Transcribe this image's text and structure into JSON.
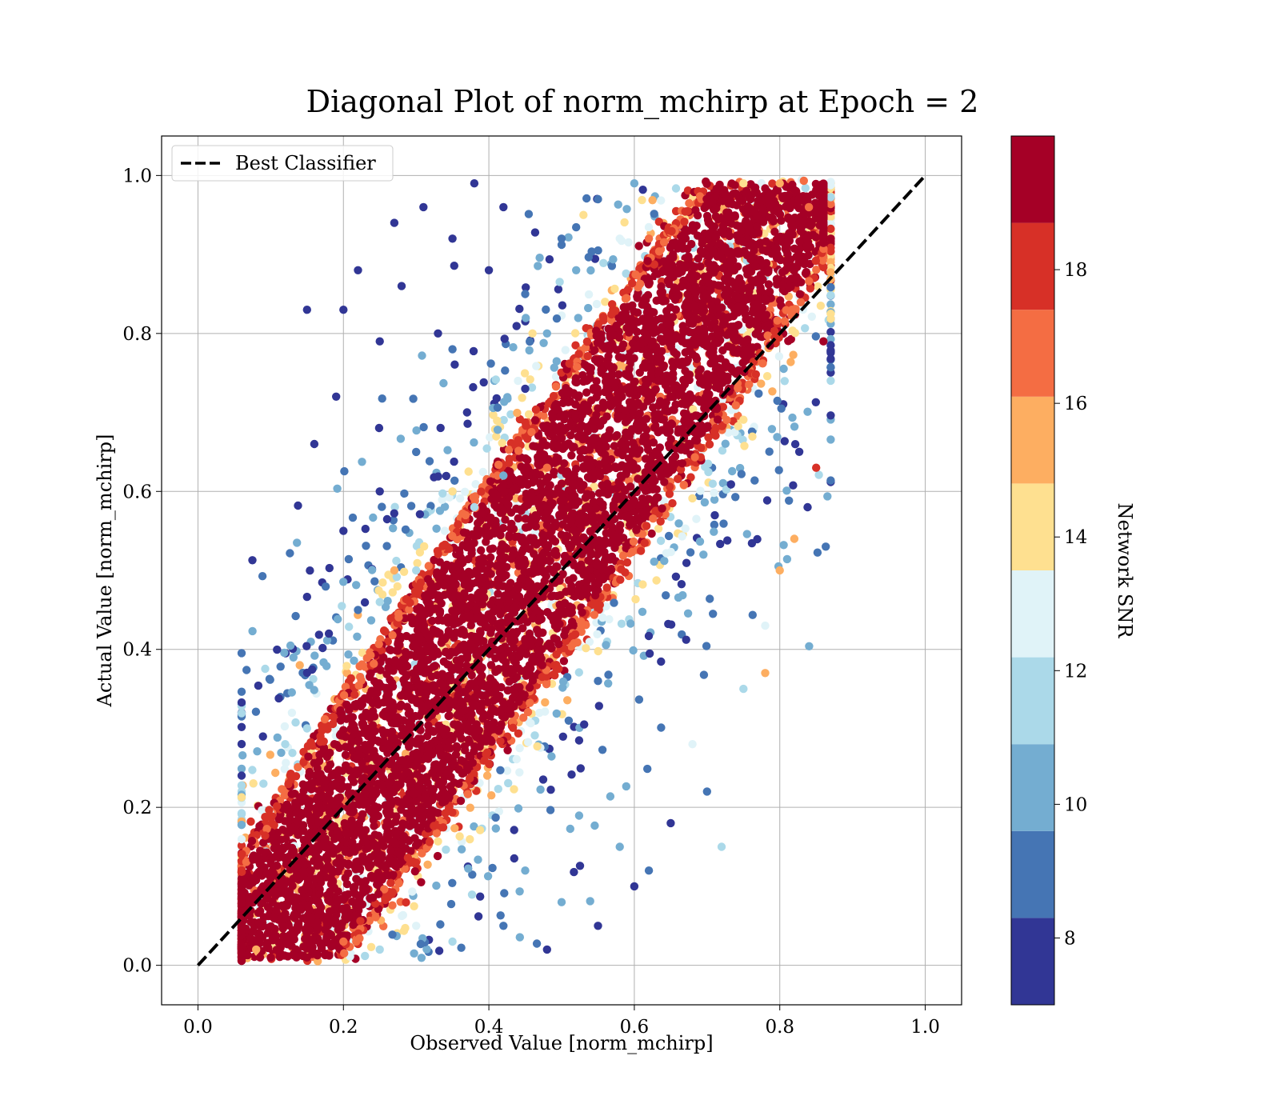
{
  "chart_data": {
    "type": "scatter",
    "title": "Diagonal Plot of norm_mchirp at Epoch = 2",
    "xlabel": "Observed Value [norm_mchirp]",
    "ylabel": "Actual Value [norm_mchirp]",
    "xlim": [
      -0.05,
      1.05
    ],
    "ylim": [
      -0.05,
      1.05
    ],
    "xticks": [
      "0.0",
      "0.2",
      "0.4",
      "0.6",
      "0.8",
      "1.0"
    ],
    "yticks": [
      "0.0",
      "0.2",
      "0.4",
      "0.6",
      "0.8",
      "1.0"
    ],
    "grid": true,
    "legend": {
      "placement": "upper-left",
      "entries": [
        {
          "label": "Best Classifier",
          "style": "black dashed line"
        }
      ]
    },
    "reference_line": {
      "label": "Best Classifier",
      "x": [
        0.0,
        1.0
      ],
      "y": [
        0.0,
        1.0
      ],
      "color": "#000000",
      "dash": "dashed"
    },
    "colorbar": {
      "label": "Network SNR",
      "range": [
        7,
        20
      ],
      "ticks": [
        "8",
        "10",
        "12",
        "14",
        "16",
        "18"
      ],
      "tick_values": [
        8,
        10,
        12,
        14,
        16,
        18
      ],
      "bins": [
        {
          "from": 7,
          "to": 8.3,
          "color": "#313695"
        },
        {
          "from": 8.3,
          "to": 9.6,
          "color": "#4575b4"
        },
        {
          "from": 9.6,
          "to": 10.9,
          "color": "#74add1"
        },
        {
          "from": 10.9,
          "to": 12.2,
          "color": "#abd9e9"
        },
        {
          "from": 12.2,
          "to": 13.5,
          "color": "#e0f3f8"
        },
        {
          "from": 13.5,
          "to": 14.8,
          "color": "#fee090"
        },
        {
          "from": 14.8,
          "to": 16.1,
          "color": "#fdae61"
        },
        {
          "from": 16.1,
          "to": 17.4,
          "color": "#f46d43"
        },
        {
          "from": 17.4,
          "to": 18.7,
          "color": "#d73027"
        },
        {
          "from": 18.7,
          "to": 20,
          "color": "#a50026"
        }
      ]
    },
    "scatter_description_points": {
      "note_free": true,
      "points": [
        [
          0.15,
          0.83,
          7.5
        ],
        [
          0.2,
          0.83,
          7.5
        ],
        [
          0.16,
          0.66,
          7.5
        ],
        [
          0.27,
          0.94,
          7.5
        ],
        [
          0.31,
          0.96,
          7.5
        ],
        [
          0.38,
          0.99,
          7.5
        ],
        [
          0.42,
          0.96,
          7.5
        ],
        [
          0.45,
          0.73,
          7.5
        ],
        [
          0.22,
          0.88,
          7.5
        ],
        [
          0.25,
          0.79,
          7.5
        ],
        [
          0.35,
          0.92,
          7.5
        ],
        [
          0.19,
          0.72,
          7.5
        ],
        [
          0.28,
          0.86,
          7.5
        ],
        [
          0.33,
          0.8,
          8.0
        ],
        [
          0.37,
          0.7,
          8.0
        ],
        [
          0.4,
          0.88,
          8.0
        ],
        [
          0.25,
          0.6,
          8.0
        ],
        [
          0.2,
          0.55,
          8.0
        ],
        [
          0.3,
          0.65,
          9.0
        ],
        [
          0.35,
          0.78,
          9.0
        ],
        [
          0.22,
          0.45,
          9.0
        ],
        [
          0.18,
          0.42,
          8.0
        ],
        [
          0.45,
          0.85,
          9.0
        ],
        [
          0.5,
          0.92,
          9.0
        ],
        [
          0.55,
          0.97,
          9.0
        ],
        [
          0.6,
          0.99,
          10.0
        ],
        [
          0.48,
          0.8,
          10.0
        ],
        [
          0.52,
          0.88,
          10.0
        ],
        [
          0.42,
          0.62,
          10.0
        ],
        [
          0.38,
          0.58,
          11.0
        ],
        [
          0.3,
          0.5,
          11.0
        ],
        [
          0.25,
          0.46,
          11.0
        ],
        [
          0.15,
          0.3,
          11.5
        ],
        [
          0.12,
          0.28,
          11.5
        ],
        [
          0.09,
          0.23,
          11.5
        ],
        [
          0.44,
          0.74,
          12.5
        ],
        [
          0.58,
          0.92,
          12.5
        ],
        [
          0.53,
          0.95,
          14.0
        ],
        [
          0.46,
          0.8,
          14.0
        ],
        [
          0.35,
          0.6,
          14.0
        ],
        [
          0.27,
          0.5,
          15.0
        ],
        [
          0.14,
          0.38,
          15.5
        ],
        [
          0.48,
          0.63,
          17
        ],
        [
          0.62,
          0.92,
          17
        ],
        [
          0.6,
          0.1,
          8.0
        ],
        [
          0.65,
          0.18,
          8.0
        ],
        [
          0.55,
          0.05,
          8.0
        ],
        [
          0.48,
          0.02,
          8.0
        ],
        [
          0.42,
          0.05,
          9.0
        ],
        [
          0.62,
          0.12,
          9.0
        ],
        [
          0.7,
          0.22,
          9.0
        ],
        [
          0.58,
          0.15,
          10.0
        ],
        [
          0.5,
          0.08,
          10.0
        ],
        [
          0.45,
          0.12,
          10.0
        ],
        [
          0.72,
          0.15,
          11.5
        ],
        [
          0.35,
          0.03,
          11.5
        ],
        [
          0.3,
          0.05,
          12.5
        ],
        [
          0.25,
          0.02,
          11.5
        ],
        [
          0.68,
          0.28,
          12.5
        ],
        [
          0.75,
          0.35,
          12.0
        ],
        [
          0.78,
          0.43,
          12.5
        ],
        [
          0.8,
          0.5,
          15.0
        ],
        [
          0.82,
          0.54,
          15.5
        ],
        [
          0.78,
          0.37,
          16
        ],
        [
          0.85,
          0.63,
          18
        ],
        [
          0.86,
          0.79,
          19
        ],
        [
          0.87,
          0.92,
          19
        ],
        [
          0.84,
          0.96,
          17
        ],
        [
          0.8,
          0.99,
          16
        ],
        [
          0.75,
          0.99,
          14
        ],
        [
          0.2,
          0.03,
          17
        ],
        [
          0.15,
          0.01,
          19
        ],
        [
          0.1,
          0.01,
          19
        ],
        [
          0.08,
          0.02,
          16
        ]
      ]
    }
  }
}
